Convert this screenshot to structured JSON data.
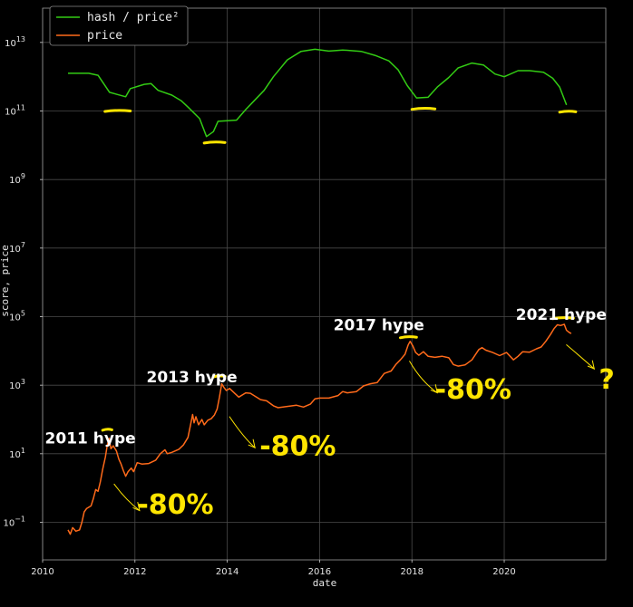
{
  "chart_data": {
    "type": "line",
    "xlabel": "date",
    "ylabel": "score, price",
    "yscale": "log",
    "xlim": [
      2010.0,
      2022.2
    ],
    "ylim": [
      0.008,
      100000000000000
    ],
    "grid": true,
    "legend_position": "top-left",
    "x_ticks": [
      2010,
      2012,
      2014,
      2016,
      2018,
      2020
    ],
    "x_tick_labels": [
      "2010",
      "2012",
      "2014",
      "2016",
      "2018",
      "2020"
    ],
    "y_ticks": [
      {
        "value": 0.1,
        "base": "10",
        "exp": "−1"
      },
      {
        "value": 10,
        "base": "10",
        "exp": "1"
      },
      {
        "value": 1000,
        "base": "10",
        "exp": "3"
      },
      {
        "value": 100000,
        "base": "10",
        "exp": "5"
      },
      {
        "value": 10000000,
        "base": "10",
        "exp": "7"
      },
      {
        "value": 1000000000,
        "base": "10",
        "exp": "9"
      },
      {
        "value": 100000000000,
        "base": "10",
        "exp": "11"
      },
      {
        "value": 10000000000000,
        "base": "10",
        "exp": "13"
      }
    ],
    "series": [
      {
        "name": "hash / price²",
        "color": "#33cc14",
        "points": [
          [
            2010.55,
            1260000000000.0
          ],
          [
            2011.0,
            1260000000000.0
          ],
          [
            2011.2,
            1100000000000.0
          ],
          [
            2011.45,
            350000000000.0
          ],
          [
            2011.8,
            260000000000.0
          ],
          [
            2011.9,
            450000000000.0
          ],
          [
            2012.2,
            600000000000.0
          ],
          [
            2012.35,
            630000000000.0
          ],
          [
            2012.5,
            400000000000.0
          ],
          [
            2012.8,
            290000000000.0
          ],
          [
            2013.0,
            200000000000.0
          ],
          [
            2013.15,
            130000000000.0
          ],
          [
            2013.4,
            60000000000.0
          ],
          [
            2013.55,
            18000000000.0
          ],
          [
            2013.7,
            25000000000.0
          ],
          [
            2013.8,
            50000000000.0
          ],
          [
            2014.2,
            54000000000.0
          ],
          [
            2014.4,
            110000000000.0
          ],
          [
            2014.6,
            210000000000.0
          ],
          [
            2014.8,
            400000000000.0
          ],
          [
            2015.0,
            1000000000000.0
          ],
          [
            2015.3,
            3100000000000.0
          ],
          [
            2015.6,
            5500000000000.0
          ],
          [
            2015.9,
            6300000000000.0
          ],
          [
            2016.2,
            5600000000000.0
          ],
          [
            2016.5,
            6000000000000.0
          ],
          [
            2016.9,
            5500000000000.0
          ],
          [
            2017.2,
            4200000000000.0
          ],
          [
            2017.5,
            2900000000000.0
          ],
          [
            2017.7,
            1600000000000.0
          ],
          [
            2017.9,
            550000000000.0
          ],
          [
            2018.1,
            240000000000.0
          ],
          [
            2018.35,
            250000000000.0
          ],
          [
            2018.55,
            500000000000.0
          ],
          [
            2018.8,
            950000000000.0
          ],
          [
            2019.0,
            1800000000000.0
          ],
          [
            2019.3,
            2500000000000.0
          ],
          [
            2019.55,
            2200000000000.0
          ],
          [
            2019.8,
            1200000000000.0
          ],
          [
            2020.0,
            1000000000000.0
          ],
          [
            2020.3,
            1500000000000.0
          ],
          [
            2020.55,
            1500000000000.0
          ],
          [
            2020.85,
            1350000000000.0
          ],
          [
            2021.05,
            900000000000.0
          ],
          [
            2021.2,
            500000000000.0
          ],
          [
            2021.35,
            150000000000.0
          ]
        ]
      },
      {
        "name": "price",
        "color": "#ff6a1a",
        "points": [
          [
            2010.55,
            0.06
          ],
          [
            2010.6,
            0.045
          ],
          [
            2010.65,
            0.07
          ],
          [
            2010.72,
            0.055
          ],
          [
            2010.8,
            0.06
          ],
          [
            2010.85,
            0.1
          ],
          [
            2010.9,
            0.2
          ],
          [
            2010.95,
            0.25
          ],
          [
            2011.05,
            0.3
          ],
          [
            2011.1,
            0.5
          ],
          [
            2011.15,
            0.9
          ],
          [
            2011.2,
            0.8
          ],
          [
            2011.25,
            1.5
          ],
          [
            2011.3,
            3.5
          ],
          [
            2011.36,
            8
          ],
          [
            2011.4,
            18
          ],
          [
            2011.44,
            28
          ],
          [
            2011.48,
            14
          ],
          [
            2011.53,
            17
          ],
          [
            2011.6,
            12
          ],
          [
            2011.65,
            7
          ],
          [
            2011.7,
            5
          ],
          [
            2011.75,
            3.2
          ],
          [
            2011.8,
            2.2
          ],
          [
            2011.85,
            3
          ],
          [
            2011.92,
            3.8
          ],
          [
            2011.97,
            3
          ],
          [
            2012.05,
            5.5
          ],
          [
            2012.15,
            5
          ],
          [
            2012.3,
            5.2
          ],
          [
            2012.45,
            6.5
          ],
          [
            2012.55,
            10
          ],
          [
            2012.65,
            13
          ],
          [
            2012.7,
            10
          ],
          [
            2012.8,
            11
          ],
          [
            2012.95,
            13.5
          ],
          [
            2013.05,
            18
          ],
          [
            2013.15,
            30
          ],
          [
            2013.25,
            140
          ],
          [
            2013.28,
            80
          ],
          [
            2013.32,
            120
          ],
          [
            2013.38,
            70
          ],
          [
            2013.45,
            100
          ],
          [
            2013.5,
            70
          ],
          [
            2013.58,
            95
          ],
          [
            2013.65,
            105
          ],
          [
            2013.72,
            135
          ],
          [
            2013.78,
            200
          ],
          [
            2013.83,
            450
          ],
          [
            2013.88,
            1100
          ],
          [
            2013.93,
            850
          ],
          [
            2013.98,
            700
          ],
          [
            2014.05,
            800
          ],
          [
            2014.15,
            600
          ],
          [
            2014.25,
            450
          ],
          [
            2014.4,
            600
          ],
          [
            2014.5,
            580
          ],
          [
            2014.6,
            480
          ],
          [
            2014.72,
            380
          ],
          [
            2014.85,
            350
          ],
          [
            2015.0,
            250
          ],
          [
            2015.1,
            220
          ],
          [
            2015.3,
            240
          ],
          [
            2015.5,
            260
          ],
          [
            2015.65,
            230
          ],
          [
            2015.8,
            280
          ],
          [
            2015.9,
            400
          ],
          [
            2016.0,
            420
          ],
          [
            2016.2,
            420
          ],
          [
            2016.4,
            500
          ],
          [
            2016.5,
            650
          ],
          [
            2016.6,
            600
          ],
          [
            2016.8,
            650
          ],
          [
            2016.95,
            950
          ],
          [
            2017.1,
            1100
          ],
          [
            2017.25,
            1200
          ],
          [
            2017.4,
            2200
          ],
          [
            2017.55,
            2600
          ],
          [
            2017.65,
            4000
          ],
          [
            2017.75,
            5500
          ],
          [
            2017.85,
            8000
          ],
          [
            2017.92,
            15000
          ],
          [
            2017.96,
            19000
          ],
          [
            2018.02,
            14000
          ],
          [
            2018.08,
            9000
          ],
          [
            2018.15,
            7500
          ],
          [
            2018.25,
            9500
          ],
          [
            2018.35,
            7000
          ],
          [
            2018.5,
            6500
          ],
          [
            2018.65,
            7000
          ],
          [
            2018.8,
            6300
          ],
          [
            2018.9,
            4000
          ],
          [
            2019.0,
            3600
          ],
          [
            2019.15,
            3900
          ],
          [
            2019.3,
            5500
          ],
          [
            2019.45,
            11000
          ],
          [
            2019.52,
            12500
          ],
          [
            2019.6,
            10500
          ],
          [
            2019.75,
            9000
          ],
          [
            2019.9,
            7300
          ],
          [
            2020.05,
            9000
          ],
          [
            2020.2,
            5500
          ],
          [
            2020.3,
            7000
          ],
          [
            2020.4,
            9500
          ],
          [
            2020.55,
            9200
          ],
          [
            2020.7,
            11500
          ],
          [
            2020.8,
            13000
          ],
          [
            2020.9,
            19000
          ],
          [
            2021.0,
            30000
          ],
          [
            2021.08,
            45000
          ],
          [
            2021.15,
            58000
          ],
          [
            2021.22,
            55000
          ],
          [
            2021.3,
            60000
          ],
          [
            2021.35,
            40000
          ],
          [
            2021.4,
            35000
          ],
          [
            2021.45,
            32000
          ]
        ]
      }
    ],
    "annotations": [
      {
        "text": "2011 hype",
        "x": 2010.05,
        "y": 20
      },
      {
        "text": "2013 hype",
        "x": 2012.25,
        "y": 1200
      },
      {
        "text": "2017 hype",
        "x": 2016.3,
        "y": 40000
      },
      {
        "text": "2021 hype",
        "x": 2020.25,
        "y": 80000
      },
      {
        "text": "-80%",
        "x": 2012.05,
        "y": 0.18
      },
      {
        "text": "-80%",
        "x": 2014.7,
        "y": 9
      },
      {
        "text": "-80%",
        "x": 2018.5,
        "y": 400
      },
      {
        "text": "?",
        "x": 2022.05,
        "y": 800
      }
    ],
    "highlight_marks": [
      {
        "x": [
          2011.3,
          2011.5
        ],
        "y": 50
      },
      {
        "x": [
          2013.7,
          2013.95
        ],
        "y": 1800
      },
      {
        "x": [
          2017.75,
          2018.1
        ],
        "y": 25000
      },
      {
        "x": [
          2021.05,
          2021.5
        ],
        "y": 90000
      },
      {
        "x": [
          2011.35,
          2011.9
        ],
        "y": 100000000000.0
      },
      {
        "x": [
          2013.5,
          2013.95
        ],
        "y": 12000000000.0
      },
      {
        "x": [
          2018.0,
          2018.5
        ],
        "y": 115000000000.0
      },
      {
        "x": [
          2021.2,
          2021.55
        ],
        "y": 95000000000.0
      }
    ],
    "arrows": [
      {
        "points": [
          [
            2011.55,
            1.3
          ],
          [
            2011.8,
            0.45
          ],
          [
            2012.1,
            0.22
          ]
        ],
        "head": [
          2012.1,
          0.22
        ]
      },
      {
        "points": [
          [
            2014.05,
            120
          ],
          [
            2014.35,
            30
          ],
          [
            2014.6,
            15
          ]
        ],
        "head": [
          2014.6,
          15
        ]
      },
      {
        "points": [
          [
            2017.95,
            5000
          ],
          [
            2018.2,
            1300
          ],
          [
            2018.55,
            600
          ]
        ],
        "head": [
          2018.55,
          600
        ]
      },
      {
        "points": [
          [
            2021.35,
            15000
          ],
          [
            2021.7,
            6000
          ],
          [
            2021.95,
            3000
          ]
        ],
        "head": [
          2021.95,
          3000
        ]
      }
    ]
  }
}
